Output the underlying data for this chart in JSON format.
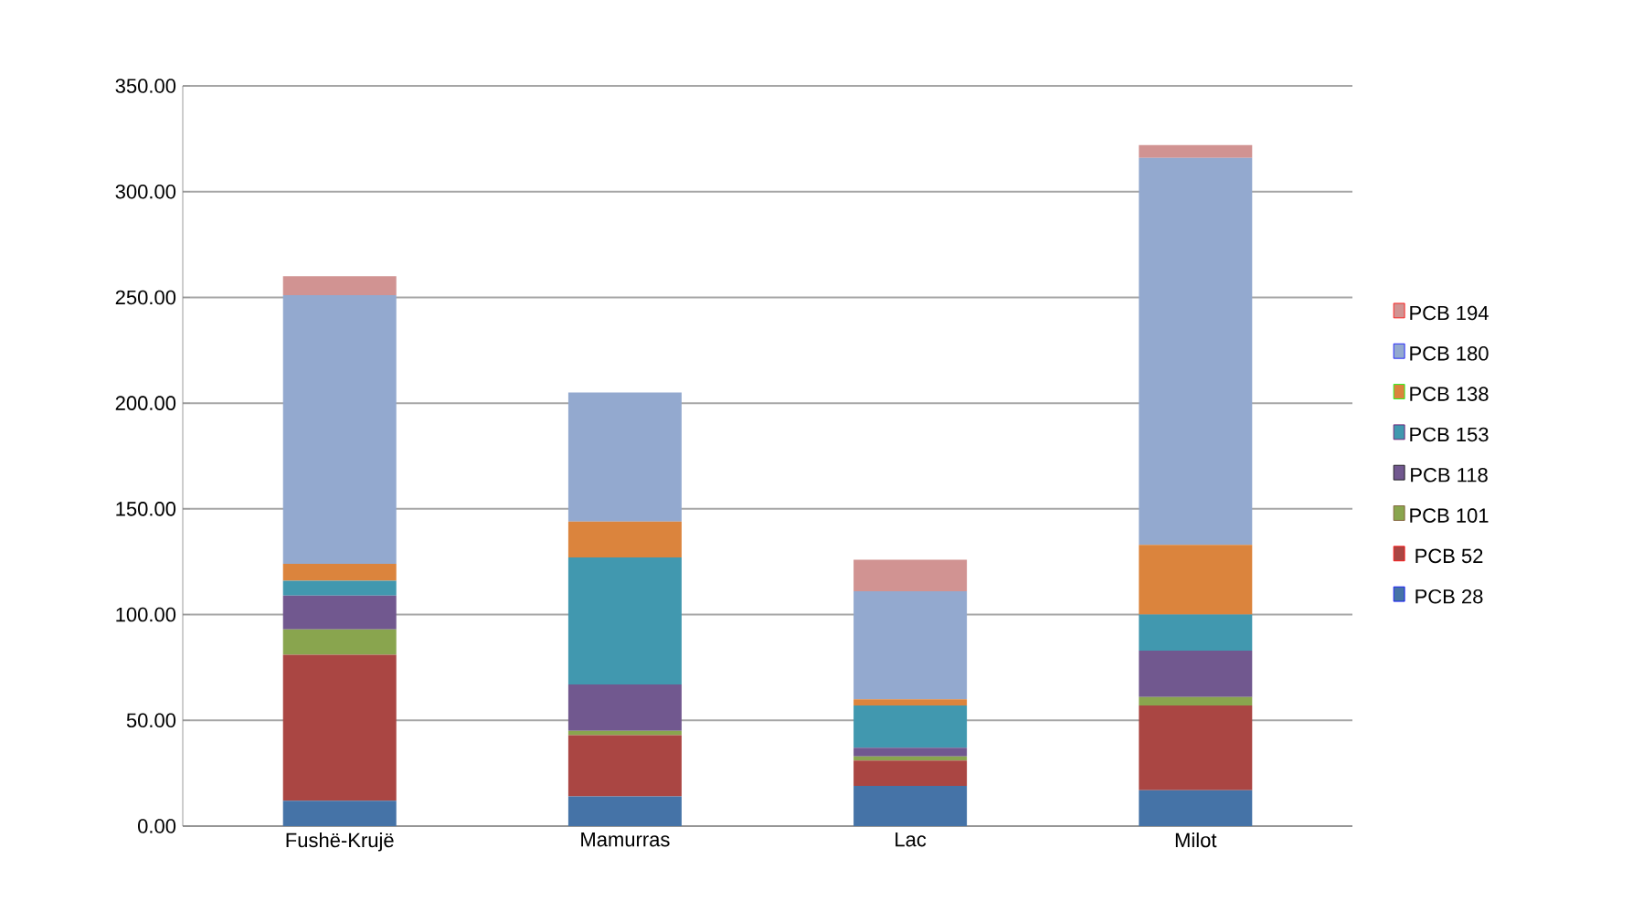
{
  "chart_data": {
    "type": "bar",
    "stacked": true,
    "categories": [
      "Fushë-Krujë",
      "Mamurras",
      "Lac",
      "Milot"
    ],
    "series": [
      {
        "name": "PCB 28",
        "color": "#4573a7",
        "values": [
          12,
          14,
          19,
          17
        ]
      },
      {
        "name": "PCB 52",
        "color": "#aa4643",
        "values": [
          69,
          29,
          12,
          40
        ]
      },
      {
        "name": "PCB 101",
        "color": "#89a54e",
        "values": [
          12,
          2,
          2,
          4
        ]
      },
      {
        "name": "PCB 118",
        "color": "#71588f",
        "values": [
          16,
          22,
          4,
          22
        ]
      },
      {
        "name": "PCB 153",
        "color": "#4198af",
        "values": [
          7,
          60,
          20,
          17
        ]
      },
      {
        "name": "PCB 138",
        "color": "#db843d",
        "values": [
          8,
          17,
          3,
          33
        ]
      },
      {
        "name": "PCB 180",
        "color": "#93a9cf",
        "values": [
          127,
          61,
          51,
          183
        ]
      },
      {
        "name": "PCB 194",
        "color": "#d19392",
        "values": [
          9,
          0,
          15,
          6
        ]
      }
    ],
    "ylim": [
      0,
      350
    ],
    "yticks": [
      {
        "value": 0,
        "label": "0.00"
      },
      {
        "value": 50,
        "label": "50.00"
      },
      {
        "value": 100,
        "label": "100.00"
      },
      {
        "value": 150,
        "label": "150.00"
      },
      {
        "value": 200,
        "label": "200.00"
      },
      {
        "value": 250,
        "label": "250.00"
      },
      {
        "value": 300,
        "label": "300.00"
      },
      {
        "value": 350,
        "label": "350.00"
      }
    ],
    "grid": "y",
    "legend": "right"
  }
}
